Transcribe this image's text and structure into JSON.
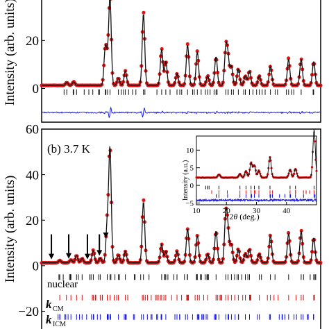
{
  "chart_data": [
    {
      "type": "scatter",
      "panel": "a",
      "ylabel": "Intensity (arb. units)",
      "ylim": [
        -14,
        38
      ],
      "yticks": [
        0,
        20
      ],
      "yticklabels": [
        "0",
        "20"
      ],
      "xlim": [
        0,
        100
      ],
      "peaks": [
        {
          "x": 9,
          "y": 1.2
        },
        {
          "x": 11.5,
          "y": 1.5
        },
        {
          "x": 22.8,
          "y": 15
        },
        {
          "x": 23.6,
          "y": 8
        },
        {
          "x": 24.5,
          "y": 36
        },
        {
          "x": 27.5,
          "y": 3
        },
        {
          "x": 30,
          "y": 6
        },
        {
          "x": 36.5,
          "y": 30
        },
        {
          "x": 43,
          "y": 15
        },
        {
          "x": 44.5,
          "y": 10
        },
        {
          "x": 48.5,
          "y": 5
        },
        {
          "x": 52.3,
          "y": 17
        },
        {
          "x": 55.8,
          "y": 14
        },
        {
          "x": 59.5,
          "y": 4
        },
        {
          "x": 62.5,
          "y": 12
        },
        {
          "x": 66,
          "y": 15
        },
        {
          "x": 66.8,
          "y": 11
        },
        {
          "x": 68,
          "y": 8
        },
        {
          "x": 70.5,
          "y": 7
        },
        {
          "x": 73,
          "y": 4
        },
        {
          "x": 74.5,
          "y": 6
        },
        {
          "x": 78,
          "y": 4
        },
        {
          "x": 82,
          "y": 8
        },
        {
          "x": 88.5,
          "y": 11
        },
        {
          "x": 93,
          "y": 11
        },
        {
          "x": 97.5,
          "y": 10
        }
      ],
      "background": 1.3,
      "difference_offset": -10,
      "tick_rows": [
        {
          "name": "",
          "color": "#111111",
          "offset": -1.5
        }
      ]
    },
    {
      "type": "scatter",
      "panel": "b",
      "panel_label": "(b) 3.7 K",
      "ylabel": "Intensity (arb. units)",
      "ylim": [
        -29,
        60
      ],
      "yticks": [
        -20,
        0,
        20,
        40,
        60
      ],
      "yticklabels": [
        "−20",
        "0",
        "20",
        "40",
        "60"
      ],
      "xlim": [
        0,
        100
      ],
      "peaks": [
        {
          "x": 6.5,
          "y": 1.0
        },
        {
          "x": 10.5,
          "y": 1.3
        },
        {
          "x": 12.5,
          "y": 3.2
        },
        {
          "x": 14.5,
          "y": 1.8
        },
        {
          "x": 18.5,
          "y": 5.5
        },
        {
          "x": 21,
          "y": 2
        },
        {
          "x": 23.5,
          "y": 17
        },
        {
          "x": 24.5,
          "y": 50
        },
        {
          "x": 27.5,
          "y": 3.5
        },
        {
          "x": 30,
          "y": 5
        },
        {
          "x": 36.5,
          "y": 27
        },
        {
          "x": 43,
          "y": 8
        },
        {
          "x": 44.5,
          "y": 5
        },
        {
          "x": 48.5,
          "y": 5
        },
        {
          "x": 52.3,
          "y": 15
        },
        {
          "x": 55.8,
          "y": 12
        },
        {
          "x": 59.5,
          "y": 4
        },
        {
          "x": 62.5,
          "y": 14
        },
        {
          "x": 66,
          "y": 21
        },
        {
          "x": 66.8,
          "y": 13
        },
        {
          "x": 68,
          "y": 8
        },
        {
          "x": 70.5,
          "y": 6
        },
        {
          "x": 73,
          "y": 4
        },
        {
          "x": 74.5,
          "y": 6
        },
        {
          "x": 78,
          "y": 4
        },
        {
          "x": 82,
          "y": 12
        },
        {
          "x": 88.5,
          "y": 13
        },
        {
          "x": 93,
          "y": 14
        },
        {
          "x": 97.5,
          "y": 11
        }
      ],
      "arrows_at_x": [
        3.5,
        9.7,
        16.4,
        20.7,
        23
      ],
      "background": 1.3,
      "tick_rows": [
        {
          "name": "nuclear",
          "color": "#111111",
          "offset": -5
        },
        {
          "name": "k_CM",
          "color": "#dd1111",
          "offset": -14
        },
        {
          "name": "k_ICM",
          "color": "#1111dd",
          "offset": -22.5
        }
      ],
      "labels": {
        "nuclear": "nuclear",
        "k": "k",
        "cm": "CM",
        "icm": "ICM"
      }
    },
    {
      "type": "scatter",
      "panel": "inset",
      "ylabel": "Intensity (a.u.)",
      "xlabel_prefix": "2",
      "xlabel_theta": "θ",
      "xlabel_suffix": " (deg.)",
      "xlim": [
        10,
        50
      ],
      "ylim": [
        -5.5,
        14
      ],
      "xticks": [
        10,
        20,
        30,
        40
      ],
      "yticks": [
        -5,
        0,
        5,
        10
      ],
      "xticklabels": [
        "10",
        "20",
        "30",
        "40"
      ],
      "yticklabels": [
        "−5",
        "0",
        "5",
        "10"
      ],
      "peaks": [
        {
          "x": 17.5,
          "y": 0.9
        },
        {
          "x": 24.5,
          "y": 1.0
        },
        {
          "x": 26.5,
          "y": 1.8
        },
        {
          "x": 28.2,
          "y": 4.2
        },
        {
          "x": 29.3,
          "y": 3.5
        },
        {
          "x": 30.8,
          "y": 2.0
        },
        {
          "x": 34.5,
          "y": 5.8
        },
        {
          "x": 41.2,
          "y": 2.3
        },
        {
          "x": 43,
          "y": 2.5
        },
        {
          "x": 49.2,
          "y": 13.5
        }
      ],
      "background": 2.2,
      "difference_offset": -4.2,
      "tick_rows": [
        {
          "name": "nuclear",
          "color": "#111111",
          "offset": -0.6
        },
        {
          "name": "k_CM",
          "color": "#dd1111",
          "offset": -1.9
        },
        {
          "name": "k_ICM",
          "color": "#1111dd",
          "offset": -3.0
        }
      ]
    }
  ],
  "colors": {
    "observed": "#e01515",
    "calculated": "#111111",
    "difference": "#1c1cdd",
    "nuclear": "#111111",
    "cm": "#dd1111",
    "icm": "#1111dd"
  }
}
